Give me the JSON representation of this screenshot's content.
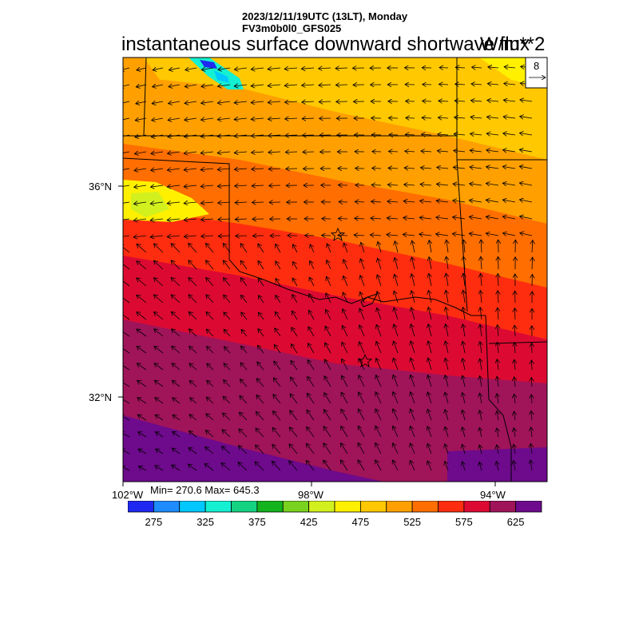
{
  "header": {
    "valid_time": "2023/12/11/19UTC (13LT), Monday",
    "model_run": "FV3m0b0l0_GFS025"
  },
  "map": {
    "title": "instantaneous surface downward shortwave flux",
    "units": "W/m**2",
    "vector_ref_value": "8",
    "lat_ticks": [
      "36°N",
      "32°N"
    ],
    "lon_ticks": [
      "102°W",
      "98°W",
      "94°W"
    ],
    "stats": "Min= 270.6 Max= 645.3",
    "stars": [
      "city-marker-north",
      "city-marker-south"
    ]
  },
  "colorbar": {
    "colors": [
      "#1e28f0",
      "#1e8cff",
      "#00c8ff",
      "#14f0d2",
      "#14d282",
      "#14b41e",
      "#78d21e",
      "#d2f01e",
      "#fff000",
      "#ffc800",
      "#ffa000",
      "#ff6e00",
      "#ff2d0f",
      "#dc0a32",
      "#a0145a",
      "#6e0a8c"
    ],
    "labels": [
      "275",
      "325",
      "375",
      "425",
      "475",
      "525",
      "575",
      "625"
    ]
  }
}
